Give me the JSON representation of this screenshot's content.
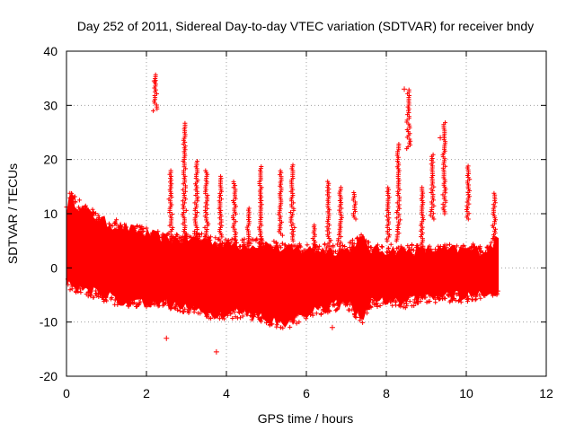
{
  "chart_data": {
    "type": "scatter",
    "title": "Day 252 of 2011, Sidereal Day-to-day VTEC variation (SDTVAR) for receiver bndy",
    "xlabel": "GPS time / hours",
    "ylabel": "SDTVAR / TECUs",
    "xlim": [
      0,
      12
    ],
    "ylim": [
      -20,
      40
    ],
    "xticks": [
      0,
      2,
      4,
      6,
      8,
      10,
      12
    ],
    "yticks": [
      -20,
      -10,
      0,
      10,
      20,
      30,
      40
    ],
    "grid": true,
    "legend": "none",
    "marker": "+",
    "colors": {
      "series": "#ff0000",
      "axis": "#000000",
      "grid": "#a0a0a0"
    },
    "band": {
      "x": [
        0.0,
        0.1,
        0.2,
        0.5,
        1.0,
        1.5,
        2.0,
        2.5,
        3.0,
        3.5,
        4.0,
        4.5,
        5.0,
        5.5,
        6.0,
        6.5,
        7.0,
        7.4,
        7.6,
        8.0,
        8.5,
        9.0,
        9.5,
        10.0,
        10.5,
        10.8
      ],
      "upper": [
        10,
        13,
        12,
        10,
        8,
        7,
        6,
        5,
        5,
        5,
        4,
        4,
        4,
        3,
        3,
        3,
        3,
        5,
        3,
        3,
        3,
        3,
        3,
        3,
        3,
        5
      ],
      "lower": [
        -2,
        -3,
        -3,
        -4,
        -5,
        -6,
        -6,
        -6,
        -7,
        -8,
        -8,
        -8,
        -9,
        -10,
        -8,
        -7,
        -6,
        -9,
        -6,
        -6,
        -6,
        -5,
        -5,
        -5,
        -4,
        -4
      ]
    },
    "spikes": [
      {
        "x": 2.22,
        "ymin": 29,
        "ymax": 36
      },
      {
        "x": 2.6,
        "ymin": 3,
        "ymax": 18
      },
      {
        "x": 2.95,
        "ymin": 5,
        "ymax": 27
      },
      {
        "x": 3.25,
        "ymin": 4,
        "ymax": 20
      },
      {
        "x": 3.5,
        "ymin": 5,
        "ymax": 18
      },
      {
        "x": 3.85,
        "ymin": 5,
        "ymax": 17
      },
      {
        "x": 4.2,
        "ymin": 4,
        "ymax": 16
      },
      {
        "x": 4.55,
        "ymin": 4,
        "ymax": 11
      },
      {
        "x": 4.85,
        "ymin": 4,
        "ymax": 19
      },
      {
        "x": 5.35,
        "ymin": 6,
        "ymax": 18
      },
      {
        "x": 5.65,
        "ymin": 5,
        "ymax": 19
      },
      {
        "x": 6.2,
        "ymin": 3,
        "ymax": 8
      },
      {
        "x": 6.55,
        "ymin": 2,
        "ymax": 16
      },
      {
        "x": 6.85,
        "ymin": 4,
        "ymax": 15
      },
      {
        "x": 7.2,
        "ymin": 9,
        "ymax": 14
      },
      {
        "x": 8.05,
        "ymin": 5,
        "ymax": 15
      },
      {
        "x": 8.3,
        "ymin": 5,
        "ymax": 23
      },
      {
        "x": 8.55,
        "ymin": 22,
        "ymax": 33
      },
      {
        "x": 8.9,
        "ymin": 4,
        "ymax": 15
      },
      {
        "x": 9.15,
        "ymin": 9,
        "ymax": 21
      },
      {
        "x": 9.45,
        "ymin": 10,
        "ymax": 27
      },
      {
        "x": 10.05,
        "ymin": 9,
        "ymax": 19
      },
      {
        "x": 10.7,
        "ymin": 4,
        "ymax": 14
      }
    ],
    "outliers": [
      {
        "x": 1.55,
        "y": -7
      },
      {
        "x": 2.5,
        "y": -13
      },
      {
        "x": 3.75,
        "y": -15.5
      },
      {
        "x": 6.65,
        "y": -11
      },
      {
        "x": 2.2,
        "y": 34.5
      },
      {
        "x": 8.45,
        "y": 33
      },
      {
        "x": 9.35,
        "y": 24
      }
    ]
  }
}
